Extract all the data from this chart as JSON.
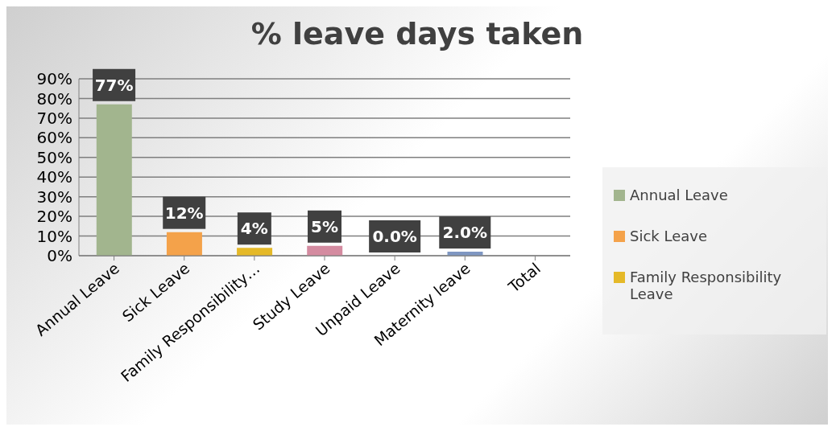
{
  "chart_data": {
    "type": "bar",
    "title": "% leave days taken",
    "categories": [
      "Annual Leave",
      "Sick Leave",
      "Family Responsibility…",
      "Study Leave",
      "Unpaid Leave",
      "Maternity leave",
      "Total"
    ],
    "stacked": true,
    "series": [
      {
        "name": "Annual Leave",
        "color": "#a2b58e",
        "values": [
          77,
          null,
          null,
          null,
          null,
          null,
          null
        ],
        "value_labels": [
          "77%",
          null,
          null,
          null,
          null,
          null,
          null
        ]
      },
      {
        "name": "Sick Leave",
        "color": "#f4a24a",
        "values": [
          null,
          12,
          null,
          null,
          null,
          null,
          null
        ],
        "value_labels": [
          null,
          "12%",
          null,
          null,
          null,
          null,
          null
        ]
      },
      {
        "name": "Family Responsibility Leave",
        "color": "#e5b928",
        "values": [
          null,
          null,
          4,
          null,
          null,
          null,
          null
        ],
        "value_labels": [
          null,
          null,
          "4%",
          null,
          null,
          null,
          null
        ]
      },
      {
        "color": "#d48ba0",
        "values": [
          null,
          null,
          null,
          5,
          null,
          null,
          null
        ],
        "value_labels": [
          null,
          null,
          null,
          "5%",
          null,
          null,
          null
        ]
      },
      {
        "color": "#a5a5a5",
        "values": [
          null,
          null,
          null,
          null,
          0,
          null,
          null
        ],
        "value_labels": [
          null,
          null,
          null,
          null,
          "0.0%",
          null,
          null
        ]
      },
      {
        "color": "#7f97c2",
        "values": [
          null,
          null,
          null,
          null,
          null,
          2,
          null
        ],
        "value_labels": [
          null,
          null,
          null,
          null,
          null,
          "2.0%",
          null
        ]
      }
    ],
    "ylim": [
      0,
      90
    ],
    "yticks": [
      {
        "value": 0,
        "label": "0%"
      },
      {
        "value": 10,
        "label": "10%"
      },
      {
        "value": 20,
        "label": "20%"
      },
      {
        "value": 30,
        "label": "30%"
      },
      {
        "value": 40,
        "label": "40%"
      },
      {
        "value": 50,
        "label": "50%"
      },
      {
        "value": 60,
        "label": "60%"
      },
      {
        "value": 70,
        "label": "70%"
      },
      {
        "value": 80,
        "label": "80%"
      },
      {
        "value": 90,
        "label": "90%"
      }
    ],
    "grid": "y",
    "legend": "right"
  }
}
